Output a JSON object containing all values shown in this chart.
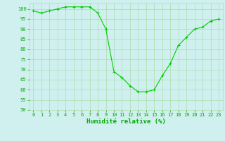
{
  "x": [
    0,
    1,
    2,
    3,
    4,
    5,
    6,
    7,
    8,
    9,
    10,
    11,
    12,
    13,
    14,
    15,
    16,
    17,
    18,
    19,
    20,
    21,
    22,
    23
  ],
  "y": [
    99,
    98,
    99,
    100,
    101,
    101,
    101,
    101,
    98,
    90,
    69,
    66,
    62,
    59,
    59,
    60,
    67,
    73,
    82,
    86,
    90,
    91,
    94,
    95
  ],
  "line_color": "#00cc00",
  "marker": "+",
  "bg_color": "#d0f0f0",
  "grid_color": "#aaddaa",
  "xlabel": "Humidité relative (%)",
  "xlabel_color": "#00aa00",
  "tick_color": "#00aa00",
  "ylim": [
    50,
    103
  ],
  "yticks": [
    50,
    55,
    60,
    65,
    70,
    75,
    80,
    85,
    90,
    95,
    100
  ],
  "xlim": [
    -0.5,
    23.5
  ],
  "xticks": [
    0,
    1,
    2,
    3,
    4,
    5,
    6,
    7,
    8,
    9,
    10,
    11,
    12,
    13,
    14,
    15,
    16,
    17,
    18,
    19,
    20,
    21,
    22,
    23
  ],
  "tick_fontsize": 5.0,
  "xlabel_fontsize": 6.5,
  "linewidth": 0.8,
  "markersize": 3.0,
  "markeredgewidth": 0.8
}
